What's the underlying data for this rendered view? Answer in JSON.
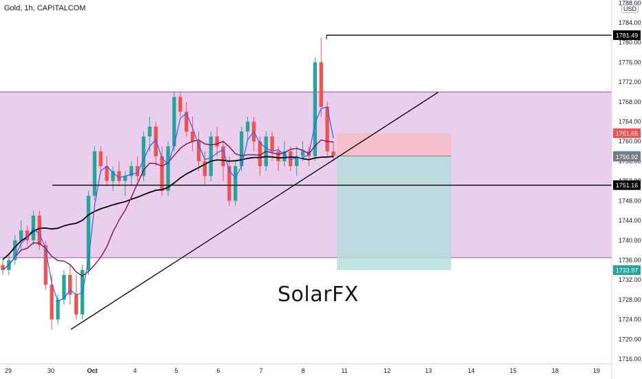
{
  "header": {
    "title": "Gold, 1h, CAPITALCOM",
    "currency": "USD"
  },
  "watermark": "SolarFX",
  "chart_data": {
    "type": "candlestick",
    "symbol": "Gold",
    "interval": "1h",
    "exchange": "CAPITALCOM",
    "y_ticks": [
      1788.0,
      1784.0,
      1780.0,
      1776.0,
      1772.0,
      1768.0,
      1764.0,
      1760.0,
      1756.0,
      1752.0,
      1748.0,
      1744.0,
      1740.0,
      1736.0,
      1732.0,
      1728.0,
      1724.0,
      1720.0,
      1716.0
    ],
    "y_range": [
      1716,
      1788.5
    ],
    "x_ticks": [
      "29",
      "30",
      "Oct",
      "4",
      "5",
      "6",
      "7",
      "8",
      "11",
      "12",
      "13",
      "14",
      "15",
      "18",
      "19"
    ],
    "price_labels": [
      {
        "text": "1781.49",
        "kind": "level"
      },
      {
        "text": "1761.65",
        "kind": "stop"
      },
      {
        "text": "1757.05",
        "kind": "last"
      },
      {
        "text": "1756.92",
        "kind": "ma"
      },
      {
        "text": "1751.16",
        "kind": "level"
      },
      {
        "text": "1733.97",
        "kind": "target"
      }
    ],
    "levels": {
      "resistance_top": 1770.0,
      "support_bottom": 1736.5,
      "high": 1781.49,
      "support": 1751.16
    },
    "short_position": {
      "entry": 1757.05,
      "stop": 1761.65,
      "target": 1733.97
    },
    "trendline": {
      "from_price": 1722.0,
      "to_price": 1770.0
    },
    "colors": {
      "up": "#26a69a",
      "down": "#ef5350",
      "zone": "#e1bee7",
      "ma_fast": "#2962ff",
      "ma_mid": "#880e4f",
      "ma_slow": "#000000",
      "stop": "#f7bcc5",
      "target": "#b2dfdb"
    },
    "candles": [
      [
        1735,
        1736,
        1733,
        1734
      ],
      [
        1734,
        1737,
        1733,
        1736
      ],
      [
        1736,
        1741,
        1735,
        1740
      ],
      [
        1740,
        1744,
        1738,
        1742
      ],
      [
        1742,
        1743,
        1739,
        1740
      ],
      [
        1740,
        1746,
        1739,
        1745
      ],
      [
        1745,
        1746,
        1738,
        1739
      ],
      [
        1739,
        1740,
        1730,
        1731
      ],
      [
        1731,
        1733,
        1722,
        1724
      ],
      [
        1724,
        1729,
        1723,
        1728
      ],
      [
        1728,
        1734,
        1727,
        1733
      ],
      [
        1733,
        1735,
        1727,
        1729
      ],
      [
        1729,
        1733,
        1724,
        1725
      ],
      [
        1725,
        1735,
        1724,
        1734
      ],
      [
        1734,
        1750,
        1733,
        1749
      ],
      [
        1749,
        1759,
        1748,
        1758
      ],
      [
        1758,
        1759,
        1754,
        1755
      ],
      [
        1755,
        1757,
        1751,
        1752
      ],
      [
        1752,
        1755,
        1750,
        1754
      ],
      [
        1754,
        1756,
        1751,
        1752
      ],
      [
        1752,
        1754,
        1749,
        1753
      ],
      [
        1753,
        1756,
        1751,
        1755
      ],
      [
        1755,
        1757,
        1752,
        1753
      ],
      [
        1753,
        1762,
        1752,
        1761
      ],
      [
        1761,
        1765,
        1758,
        1763
      ],
      [
        1763,
        1764,
        1755,
        1757
      ],
      [
        1757,
        1759,
        1749,
        1750
      ],
      [
        1750,
        1760,
        1749,
        1759
      ],
      [
        1759,
        1770,
        1758,
        1769
      ],
      [
        1769,
        1770,
        1765,
        1766
      ],
      [
        1766,
        1768,
        1761,
        1762
      ],
      [
        1762,
        1765,
        1758,
        1760
      ],
      [
        1760,
        1762,
        1754,
        1756
      ],
      [
        1756,
        1758,
        1751,
        1753
      ],
      [
        1753,
        1762,
        1752,
        1761
      ],
      [
        1761,
        1763,
        1757,
        1759
      ],
      [
        1759,
        1760,
        1752,
        1755
      ],
      [
        1755,
        1757,
        1747,
        1748
      ],
      [
        1748,
        1756,
        1747,
        1755
      ],
      [
        1755,
        1763,
        1754,
        1762
      ],
      [
        1762,
        1765,
        1760,
        1764
      ],
      [
        1764,
        1765,
        1758,
        1760
      ],
      [
        1760,
        1761,
        1753,
        1755
      ],
      [
        1755,
        1762,
        1754,
        1761
      ],
      [
        1761,
        1762,
        1756,
        1758
      ],
      [
        1758,
        1759,
        1754,
        1756
      ],
      [
        1756,
        1760,
        1755,
        1758
      ],
      [
        1758,
        1759,
        1754,
        1755
      ],
      [
        1755,
        1759,
        1753,
        1757
      ],
      [
        1757,
        1760,
        1756,
        1758
      ],
      [
        1758,
        1759,
        1755,
        1757
      ],
      [
        1757,
        1777,
        1756,
        1776
      ],
      [
        1776,
        1781,
        1765,
        1767
      ],
      [
        1767,
        1768,
        1757,
        1758
      ],
      [
        1758,
        1760,
        1756,
        1757
      ]
    ]
  }
}
